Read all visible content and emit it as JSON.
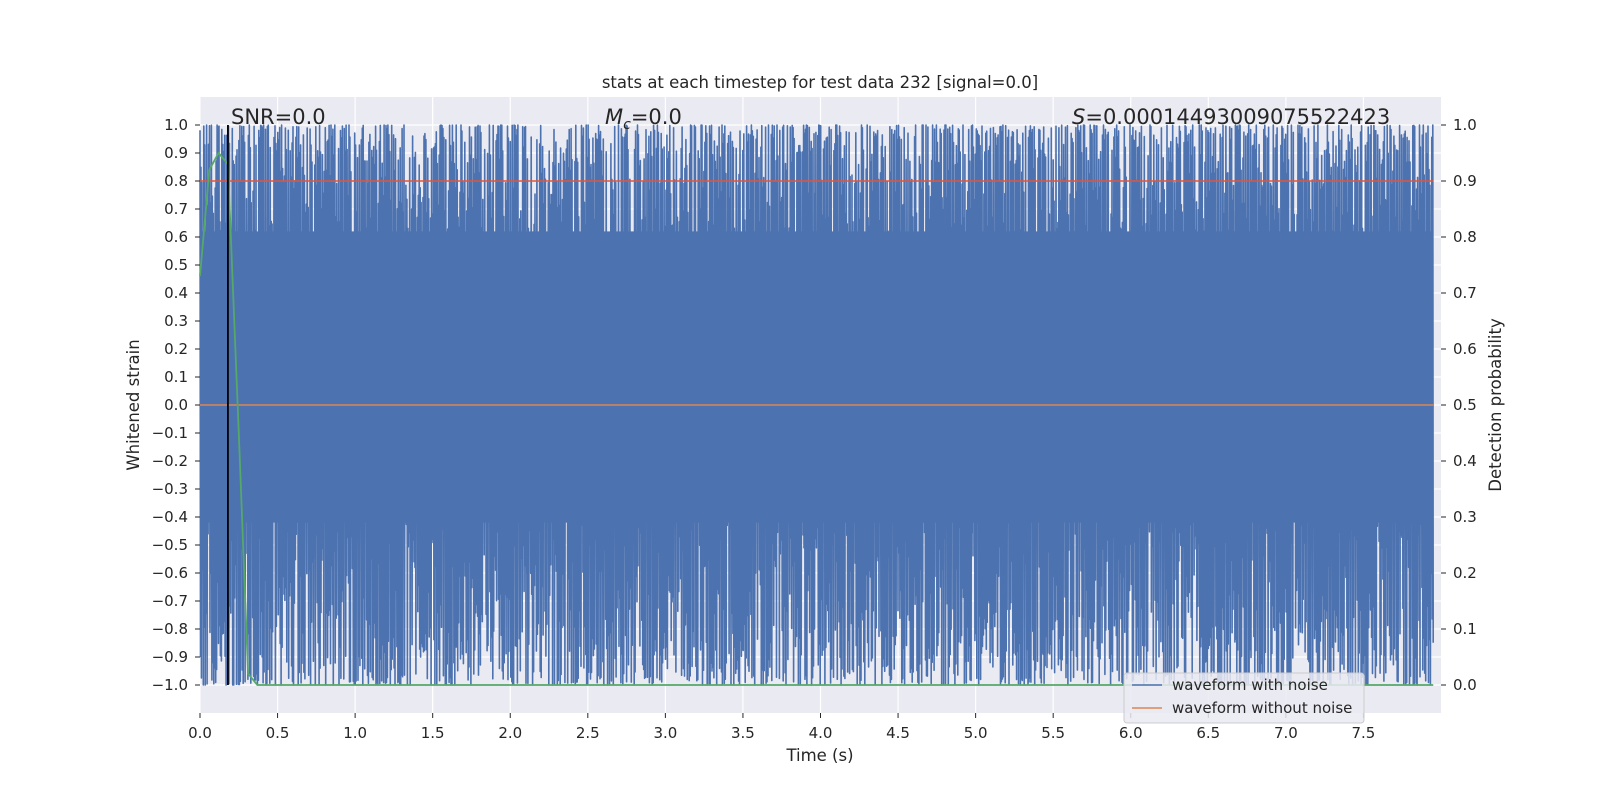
{
  "chart_data": {
    "type": "line",
    "title": "stats at each timestep for test data 232 [signal=0.0]",
    "xlabel": "Time (s)",
    "ylabel": "Whitened strain",
    "y2label": "Detection probability",
    "xlim": [
      0.0,
      8.0
    ],
    "ylim": [
      -1.1,
      1.1
    ],
    "y2lim": [
      -0.05,
      1.05
    ],
    "x_ticks": [
      0.0,
      0.5,
      1.0,
      1.5,
      2.0,
      2.5,
      3.0,
      3.5,
      4.0,
      4.5,
      5.0,
      5.5,
      6.0,
      6.5,
      7.0,
      7.5
    ],
    "x_tick_labels": [
      "0.0",
      "0.5",
      "1.0",
      "1.5",
      "2.0",
      "2.5",
      "3.0",
      "3.5",
      "4.0",
      "4.5",
      "5.0",
      "5.5",
      "6.0",
      "6.5",
      "7.0",
      "7.5"
    ],
    "y_ticks": [
      1.0,
      0.9,
      0.8,
      0.7,
      0.6,
      0.5,
      0.4,
      0.3,
      0.2,
      0.1,
      0.0,
      -0.1,
      -0.2,
      -0.3,
      -0.4,
      -0.5,
      -0.6,
      -0.7,
      -0.8,
      -0.9,
      -1.0
    ],
    "y_tick_labels": [
      "1.0",
      "0.9",
      "0.8",
      "0.7",
      "0.6",
      "0.5",
      "0.4",
      "0.3",
      "0.2",
      "0.1",
      "0.0",
      "−0.1",
      "−0.2",
      "−0.3",
      "−0.4",
      "−0.5",
      "−0.6",
      "−0.7",
      "−0.8",
      "−0.9",
      "−1.0"
    ],
    "y2_ticks": [
      1.0,
      0.9,
      0.8,
      0.7,
      0.6,
      0.5,
      0.4,
      0.3,
      0.2,
      0.1,
      0.0
    ],
    "y2_tick_labels": [
      "1.0",
      "0.9",
      "0.8",
      "0.7",
      "0.6",
      "0.5",
      "0.4",
      "0.3",
      "0.2",
      "0.1",
      "0.0"
    ],
    "grid": true,
    "legend_position": "lower-right",
    "series": [
      {
        "name": "waveform with noise",
        "color": "#4c72b0",
        "axis": "left",
        "description_values": "dense noise spanning roughly -1.0 to 1.0 over 0 to 8 s",
        "y_range": [
          -1.0,
          1.0
        ]
      },
      {
        "name": "waveform without noise",
        "color": "#dd8452",
        "axis": "left",
        "x": [
          0.0,
          7.95
        ],
        "y": [
          0.0,
          0.0
        ]
      },
      {
        "axis": "right",
        "color": "#55a868",
        "x": [
          0.0,
          0.06,
          0.12,
          0.18,
          0.25,
          0.31,
          0.37,
          0.5,
          1.0,
          2.0,
          3.0,
          4.0,
          5.0,
          6.0,
          7.0,
          7.95
        ],
        "y": [
          0.73,
          0.92,
          0.95,
          0.93,
          0.45,
          0.02,
          0.0,
          0.0,
          0.0,
          0.0,
          0.0,
          0.0,
          0.0,
          0.0,
          0.0,
          0.0
        ]
      },
      {
        "axis": "right",
        "color": "#e0553b",
        "x": [
          0.0,
          7.95
        ],
        "y": [
          0.9,
          0.9
        ]
      }
    ],
    "vertical_line": {
      "x": 0.18,
      "color": "#000000"
    },
    "annotations": {
      "snr": "SNR=0.0",
      "mc_symbol": "M",
      "mc_sub": "c",
      "mc_value": "=0.0",
      "s_symbol": "S",
      "s_value": "=0.0001449300907552242‌3"
    }
  }
}
